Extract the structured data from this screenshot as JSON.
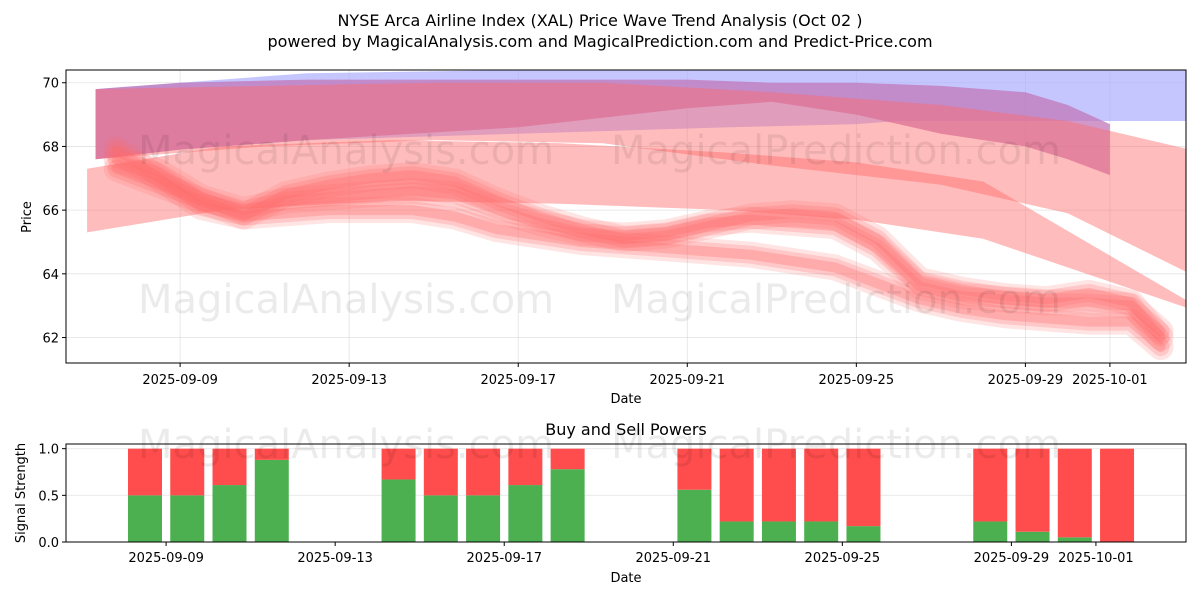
{
  "title_line1": "NYSE Arca Airline Index (XAL) Price Wave Trend Analysis (Oct 02 )",
  "title_line2": "powered by MagicalAnalysis.com and MagicalPrediction.com and Predict-Price.com",
  "watermarks": [
    "MagicalAnalysis.com",
    "MagicalPrediction.com"
  ],
  "colors": {
    "buy": "#4caf50",
    "sell": "#ff4d4d",
    "wave_red": "#ff6b6b",
    "wave_blue": "#a8a8ff",
    "wave_purple": "#c077b8"
  },
  "chart_data": [
    {
      "type": "area",
      "title": "NYSE Arca Airline Index (XAL) Price Wave Trend Analysis (Oct 02 )",
      "xlabel": "Date",
      "ylabel": "Price",
      "x_start": "2025-09-07",
      "x_end": "2025-10-03",
      "xlim_days": [
        -0.7,
        25.8
      ],
      "ylim": [
        61.2,
        70.4
      ],
      "yticks": [
        62,
        64,
        66,
        68,
        70
      ],
      "xtick_days": [
        2,
        6,
        10,
        14,
        18,
        22,
        24
      ],
      "xtick_labels": [
        "2025-09-09",
        "2025-09-13",
        "2025-09-17",
        "2025-09-21",
        "2025-09-25",
        "2025-09-29",
        "2025-10-01"
      ],
      "grid": true,
      "bands": [
        {
          "name": "upper-blue",
          "color": "blue",
          "alpha": 0.65,
          "x": [
            0,
            2,
            5,
            10,
            15,
            18,
            19,
            23,
            24,
            25,
            25.9
          ],
          "upper": [
            69.8,
            70.0,
            70.3,
            70.4,
            70.4,
            70.4,
            70.4,
            70.4,
            70.4,
            70.4,
            70.4
          ],
          "lower": [
            67.6,
            67.9,
            68.2,
            68.4,
            68.6,
            68.7,
            68.8,
            68.8,
            68.8,
            68.8,
            68.8
          ]
        },
        {
          "name": "upper-purple",
          "color": "purple",
          "alpha": 0.75,
          "x": [
            0,
            2,
            5,
            10,
            14,
            16,
            18,
            20,
            22,
            23,
            24
          ],
          "upper": [
            69.8,
            70.0,
            70.1,
            70.1,
            70.1,
            70.0,
            70.0,
            69.9,
            69.7,
            69.3,
            68.7
          ],
          "lower": [
            67.6,
            67.9,
            68.2,
            68.6,
            69.2,
            69.4,
            69.0,
            68.4,
            68.0,
            67.6,
            67.1
          ]
        },
        {
          "name": "long-red-top",
          "color": "red",
          "alpha": 0.45,
          "x": [
            0,
            4,
            8,
            12,
            16,
            20,
            23,
            25.9
          ],
          "upper": [
            69.8,
            69.9,
            70.0,
            70.0,
            69.7,
            69.3,
            68.8,
            67.9
          ],
          "lower": [
            67.6,
            68.0,
            68.2,
            68.1,
            67.4,
            66.8,
            65.9,
            64.0
          ]
        },
        {
          "name": "long-red-bottom",
          "color": "red",
          "alpha": 0.45,
          "x": [
            -0.2,
            3,
            7,
            11,
            15,
            18,
            21,
            25.9
          ],
          "upper": [
            67.3,
            68.0,
            68.2,
            68.1,
            67.8,
            67.5,
            66.9,
            63.1
          ],
          "lower": [
            65.3,
            66.0,
            66.3,
            66.2,
            66.0,
            65.7,
            65.1,
            62.9
          ]
        }
      ],
      "wave_center_lines": [
        {
          "x": [
            0.5,
            1.5,
            2.5,
            3.5,
            4.5,
            5.5,
            6.5,
            7.5,
            8.5,
            9.5,
            10.5,
            11.5,
            12.5,
            13.5,
            14.5,
            15.5,
            16.5,
            17.5,
            18.5,
            19.5,
            20.5,
            21.5,
            22.5,
            23.5,
            24.5,
            25.2
          ],
          "y": [
            67.6,
            67.2,
            66.4,
            66.0,
            66.3,
            66.4,
            66.5,
            66.6,
            66.5,
            66.0,
            65.6,
            65.3,
            65.2,
            65.3,
            65.6,
            65.7,
            65.6,
            65.5,
            64.8,
            63.6,
            63.3,
            63.2,
            63.1,
            63.1,
            63.0,
            62.2
          ]
        },
        {
          "x": [
            0.5,
            1.5,
            2.5,
            3.5,
            4.5,
            5.5,
            6.5,
            7.5,
            8.5,
            9.5,
            10.5,
            11.5,
            12.5,
            13.5,
            14.5,
            15.5,
            16.5,
            17.5,
            18.5,
            19.5,
            20.5,
            21.5,
            22.5,
            23.5,
            24.5,
            25.2
          ],
          "y": [
            67.9,
            67.0,
            66.1,
            65.8,
            66.5,
            66.8,
            67.0,
            67.1,
            66.9,
            66.3,
            65.8,
            65.4,
            65.1,
            65.2,
            65.5,
            65.8,
            65.9,
            65.8,
            65.1,
            63.8,
            63.5,
            63.3,
            63.2,
            63.4,
            63.1,
            62.0
          ]
        },
        {
          "x": [
            0.5,
            1.5,
            2.5,
            3.5,
            4.5,
            5.5,
            6.5,
            7.5,
            8.5,
            9.5,
            10.5,
            11.5,
            12.5,
            13.5,
            14.5,
            15.5,
            16.5,
            17.5,
            18.5,
            19.5,
            20.5,
            21.5,
            22.5,
            23.5,
            24.5,
            25.2
          ],
          "y": [
            67.3,
            66.8,
            66.3,
            65.8,
            65.9,
            66.0,
            66.0,
            66.0,
            65.8,
            65.4,
            65.2,
            65.0,
            64.9,
            64.8,
            64.7,
            64.6,
            64.4,
            64.2,
            63.7,
            63.2,
            62.9,
            62.7,
            62.6,
            62.5,
            62.5,
            61.7
          ]
        }
      ],
      "annotations": []
    },
    {
      "type": "bar",
      "title": "Buy and Sell Powers",
      "xlabel": "Date",
      "ylabel": "Signal Strength",
      "ylim": [
        0,
        1.05
      ],
      "yticks": [
        0.0,
        0.5,
        1.0
      ],
      "xlim_days": [
        -0.7,
        25.8
      ],
      "xtick_days": [
        2,
        6,
        10,
        14,
        18,
        22,
        24
      ],
      "xtick_labels": [
        "2025-09-09",
        "2025-09-13",
        "2025-09-17",
        "2025-09-21",
        "2025-09-25",
        "2025-09-29",
        "2025-10-01"
      ],
      "legend": "none",
      "bar_days": [
        1.5,
        2.5,
        3.5,
        4.5,
        7.5,
        8.5,
        9.5,
        10.5,
        11.5,
        14.5,
        15.5,
        16.5,
        17.5,
        18.5,
        21.5,
        22.5,
        23.5,
        24.5
      ],
      "series": [
        {
          "name": "Buy",
          "values": [
            0.5,
            0.5,
            0.61,
            0.88,
            0.67,
            0.5,
            0.5,
            0.61,
            0.78,
            0.56,
            0.22,
            0.22,
            0.22,
            0.17,
            0.22,
            0.11,
            0.05,
            0.0
          ]
        },
        {
          "name": "Sell",
          "values": [
            0.5,
            0.5,
            0.39,
            0.12,
            0.33,
            0.5,
            0.5,
            0.39,
            0.22,
            0.44,
            0.78,
            0.78,
            0.78,
            0.83,
            0.78,
            0.89,
            0.95,
            1.0
          ]
        }
      ]
    }
  ]
}
